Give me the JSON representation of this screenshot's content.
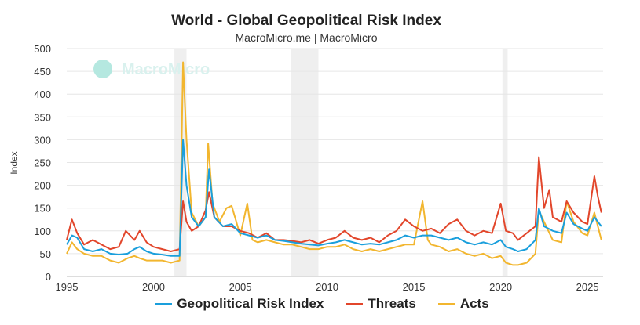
{
  "colors": {
    "gpr": "#1a9fdc",
    "threats": "#e2462b",
    "acts": "#f2b62f",
    "recession": "#efefef",
    "grid": "#e6e6e6"
  },
  "watermark": "MacroMicro",
  "chart_data": {
    "type": "line",
    "title": "World - Global Geopolitical Risk Index",
    "subtitle": "MacroMicro.me | MacroMicro",
    "ylabel": "Index",
    "xlabel": "",
    "xlim": [
      1995,
      2025.9
    ],
    "ylim": [
      0,
      500
    ],
    "x_ticks": [
      "1995",
      "2000",
      "2005",
      "2010",
      "2015",
      "2020",
      "2025"
    ],
    "y_ticks": [
      "0",
      "50",
      "100",
      "150",
      "200",
      "250",
      "300",
      "350",
      "400",
      "450",
      "500"
    ],
    "shaded_periods": [
      [
        2001.2,
        2001.9
      ],
      [
        2007.9,
        2009.5
      ],
      [
        2020.1,
        2020.4
      ]
    ],
    "grid": true,
    "legend_position": "bottom",
    "series": [
      {
        "name": "Geopolitical Risk Index",
        "color": "#1a9fdc",
        "points": [
          [
            1995.0,
            70
          ],
          [
            1995.3,
            90
          ],
          [
            1995.6,
            85
          ],
          [
            1996.0,
            60
          ],
          [
            1996.5,
            55
          ],
          [
            1997.0,
            60
          ],
          [
            1997.5,
            50
          ],
          [
            1998.0,
            48
          ],
          [
            1998.5,
            50
          ],
          [
            1998.9,
            60
          ],
          [
            1999.2,
            65
          ],
          [
            1999.6,
            55
          ],
          [
            2000.0,
            50
          ],
          [
            2000.5,
            48
          ],
          [
            2001.0,
            45
          ],
          [
            2001.5,
            45
          ],
          [
            2001.7,
            300
          ],
          [
            2001.9,
            200
          ],
          [
            2002.2,
            130
          ],
          [
            2002.6,
            110
          ],
          [
            2003.0,
            130
          ],
          [
            2003.2,
            235
          ],
          [
            2003.5,
            130
          ],
          [
            2004.0,
            110
          ],
          [
            2004.5,
            115
          ],
          [
            2005.0,
            95
          ],
          [
            2005.5,
            90
          ],
          [
            2006.0,
            85
          ],
          [
            2006.5,
            90
          ],
          [
            2007.0,
            80
          ],
          [
            2007.5,
            78
          ],
          [
            2008.0,
            75
          ],
          [
            2008.5,
            72
          ],
          [
            2009.0,
            70
          ],
          [
            2009.5,
            68
          ],
          [
            2010.0,
            72
          ],
          [
            2010.5,
            75
          ],
          [
            2011.0,
            80
          ],
          [
            2011.5,
            75
          ],
          [
            2012.0,
            70
          ],
          [
            2012.5,
            72
          ],
          [
            2013.0,
            70
          ],
          [
            2013.5,
            75
          ],
          [
            2014.0,
            80
          ],
          [
            2014.5,
            90
          ],
          [
            2015.0,
            85
          ],
          [
            2015.5,
            90
          ],
          [
            2016.0,
            90
          ],
          [
            2016.5,
            85
          ],
          [
            2017.0,
            80
          ],
          [
            2017.5,
            85
          ],
          [
            2018.0,
            75
          ],
          [
            2018.5,
            70
          ],
          [
            2019.0,
            75
          ],
          [
            2019.5,
            70
          ],
          [
            2020.0,
            80
          ],
          [
            2020.3,
            65
          ],
          [
            2020.7,
            60
          ],
          [
            2021.0,
            55
          ],
          [
            2021.5,
            60
          ],
          [
            2022.0,
            80
          ],
          [
            2022.2,
            150
          ],
          [
            2022.5,
            110
          ],
          [
            2023.0,
            100
          ],
          [
            2023.5,
            95
          ],
          [
            2023.8,
            140
          ],
          [
            2024.2,
            115
          ],
          [
            2024.7,
            105
          ],
          [
            2025.0,
            100
          ],
          [
            2025.4,
            130
          ],
          [
            2025.8,
            110
          ]
        ]
      },
      {
        "name": "Threats",
        "color": "#e2462b",
        "points": [
          [
            1995.0,
            80
          ],
          [
            1995.3,
            125
          ],
          [
            1995.6,
            95
          ],
          [
            1996.0,
            70
          ],
          [
            1996.5,
            80
          ],
          [
            1997.0,
            70
          ],
          [
            1997.5,
            60
          ],
          [
            1998.0,
            65
          ],
          [
            1998.4,
            100
          ],
          [
            1998.9,
            80
          ],
          [
            1999.2,
            100
          ],
          [
            1999.6,
            75
          ],
          [
            2000.0,
            65
          ],
          [
            2000.5,
            60
          ],
          [
            2001.0,
            55
          ],
          [
            2001.5,
            60
          ],
          [
            2001.7,
            165
          ],
          [
            2001.9,
            120
          ],
          [
            2002.2,
            100
          ],
          [
            2002.6,
            110
          ],
          [
            2003.0,
            145
          ],
          [
            2003.2,
            185
          ],
          [
            2003.5,
            130
          ],
          [
            2004.0,
            110
          ],
          [
            2004.5,
            110
          ],
          [
            2005.0,
            100
          ],
          [
            2005.5,
            95
          ],
          [
            2006.0,
            85
          ],
          [
            2006.5,
            95
          ],
          [
            2007.0,
            80
          ],
          [
            2007.5,
            80
          ],
          [
            2008.0,
            78
          ],
          [
            2008.5,
            75
          ],
          [
            2009.0,
            80
          ],
          [
            2009.5,
            72
          ],
          [
            2010.0,
            80
          ],
          [
            2010.5,
            85
          ],
          [
            2011.0,
            100
          ],
          [
            2011.5,
            85
          ],
          [
            2012.0,
            80
          ],
          [
            2012.5,
            85
          ],
          [
            2013.0,
            75
          ],
          [
            2013.5,
            90
          ],
          [
            2014.0,
            100
          ],
          [
            2014.5,
            125
          ],
          [
            2015.0,
            110
          ],
          [
            2015.5,
            100
          ],
          [
            2016.0,
            105
          ],
          [
            2016.5,
            95
          ],
          [
            2017.0,
            115
          ],
          [
            2017.5,
            125
          ],
          [
            2018.0,
            100
          ],
          [
            2018.5,
            90
          ],
          [
            2019.0,
            100
          ],
          [
            2019.5,
            95
          ],
          [
            2020.0,
            160
          ],
          [
            2020.3,
            100
          ],
          [
            2020.7,
            95
          ],
          [
            2021.0,
            80
          ],
          [
            2021.5,
            95
          ],
          [
            2022.0,
            110
          ],
          [
            2022.2,
            262
          ],
          [
            2022.5,
            150
          ],
          [
            2022.8,
            190
          ],
          [
            2023.0,
            130
          ],
          [
            2023.5,
            120
          ],
          [
            2023.8,
            165
          ],
          [
            2024.2,
            140
          ],
          [
            2024.7,
            120
          ],
          [
            2025.0,
            115
          ],
          [
            2025.4,
            220
          ],
          [
            2025.6,
            175
          ],
          [
            2025.8,
            140
          ]
        ]
      },
      {
        "name": "Acts",
        "color": "#f2b62f",
        "points": [
          [
            1995.0,
            50
          ],
          [
            1995.3,
            75
          ],
          [
            1995.6,
            60
          ],
          [
            1996.0,
            50
          ],
          [
            1996.5,
            45
          ],
          [
            1997.0,
            45
          ],
          [
            1997.5,
            35
          ],
          [
            1998.0,
            30
          ],
          [
            1998.5,
            40
          ],
          [
            1998.9,
            45
          ],
          [
            1999.2,
            40
          ],
          [
            1999.6,
            35
          ],
          [
            2000.0,
            35
          ],
          [
            2000.5,
            35
          ],
          [
            2001.0,
            30
          ],
          [
            2001.5,
            35
          ],
          [
            2001.7,
            470
          ],
          [
            2001.9,
            300
          ],
          [
            2002.2,
            140
          ],
          [
            2002.6,
            110
          ],
          [
            2003.0,
            130
          ],
          [
            2003.15,
            292
          ],
          [
            2003.4,
            160
          ],
          [
            2003.8,
            120
          ],
          [
            2004.2,
            150
          ],
          [
            2004.5,
            155
          ],
          [
            2005.0,
            90
          ],
          [
            2005.4,
            160
          ],
          [
            2005.7,
            80
          ],
          [
            2006.0,
            75
          ],
          [
            2006.5,
            80
          ],
          [
            2007.0,
            75
          ],
          [
            2007.5,
            70
          ],
          [
            2008.0,
            70
          ],
          [
            2008.5,
            65
          ],
          [
            2009.0,
            60
          ],
          [
            2009.5,
            60
          ],
          [
            2010.0,
            65
          ],
          [
            2010.5,
            65
          ],
          [
            2011.0,
            70
          ],
          [
            2011.5,
            60
          ],
          [
            2012.0,
            55
          ],
          [
            2012.5,
            60
          ],
          [
            2013.0,
            55
          ],
          [
            2013.5,
            60
          ],
          [
            2014.0,
            65
          ],
          [
            2014.5,
            70
          ],
          [
            2015.0,
            70
          ],
          [
            2015.5,
            165
          ],
          [
            2015.8,
            80
          ],
          [
            2016.0,
            70
          ],
          [
            2016.5,
            65
          ],
          [
            2017.0,
            55
          ],
          [
            2017.5,
            60
          ],
          [
            2018.0,
            50
          ],
          [
            2018.5,
            45
          ],
          [
            2019.0,
            50
          ],
          [
            2019.5,
            40
          ],
          [
            2020.0,
            45
          ],
          [
            2020.3,
            30
          ],
          [
            2020.7,
            25
          ],
          [
            2021.0,
            25
          ],
          [
            2021.5,
            30
          ],
          [
            2022.0,
            50
          ],
          [
            2022.2,
            145
          ],
          [
            2022.5,
            120
          ],
          [
            2023.0,
            80
          ],
          [
            2023.5,
            75
          ],
          [
            2023.8,
            165
          ],
          [
            2024.2,
            120
          ],
          [
            2024.7,
            95
          ],
          [
            2025.0,
            90
          ],
          [
            2025.4,
            140
          ],
          [
            2025.8,
            80
          ]
        ]
      }
    ]
  }
}
